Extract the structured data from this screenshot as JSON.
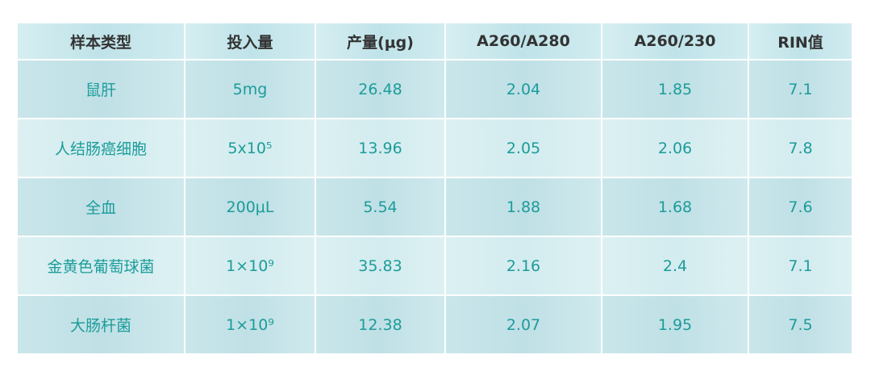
{
  "table": {
    "header": [
      "样本类型",
      "投入量",
      "产量(μg)",
      "A260/A280",
      "A260/230",
      "RIN值"
    ],
    "rows": [
      [
        "鼠肝",
        "5mg",
        "26.48",
        "2.04",
        "1.85",
        "7.1"
      ],
      [
        "人结肠癌细胞",
        "5x10⁵",
        "13.96",
        "2.05",
        "2.06",
        "7.8"
      ],
      [
        "全血",
        "200μL",
        "5.54",
        "1.88",
        "1.68",
        "7.6"
      ],
      [
        "金黄色葡萄球菌",
        "1×10⁹",
        "35.83",
        "2.16",
        "2.4",
        "7.1"
      ],
      [
        "大肠杆菌",
        "1×10⁹",
        "12.38",
        "2.07",
        "1.95",
        "7.5"
      ]
    ]
  }
}
